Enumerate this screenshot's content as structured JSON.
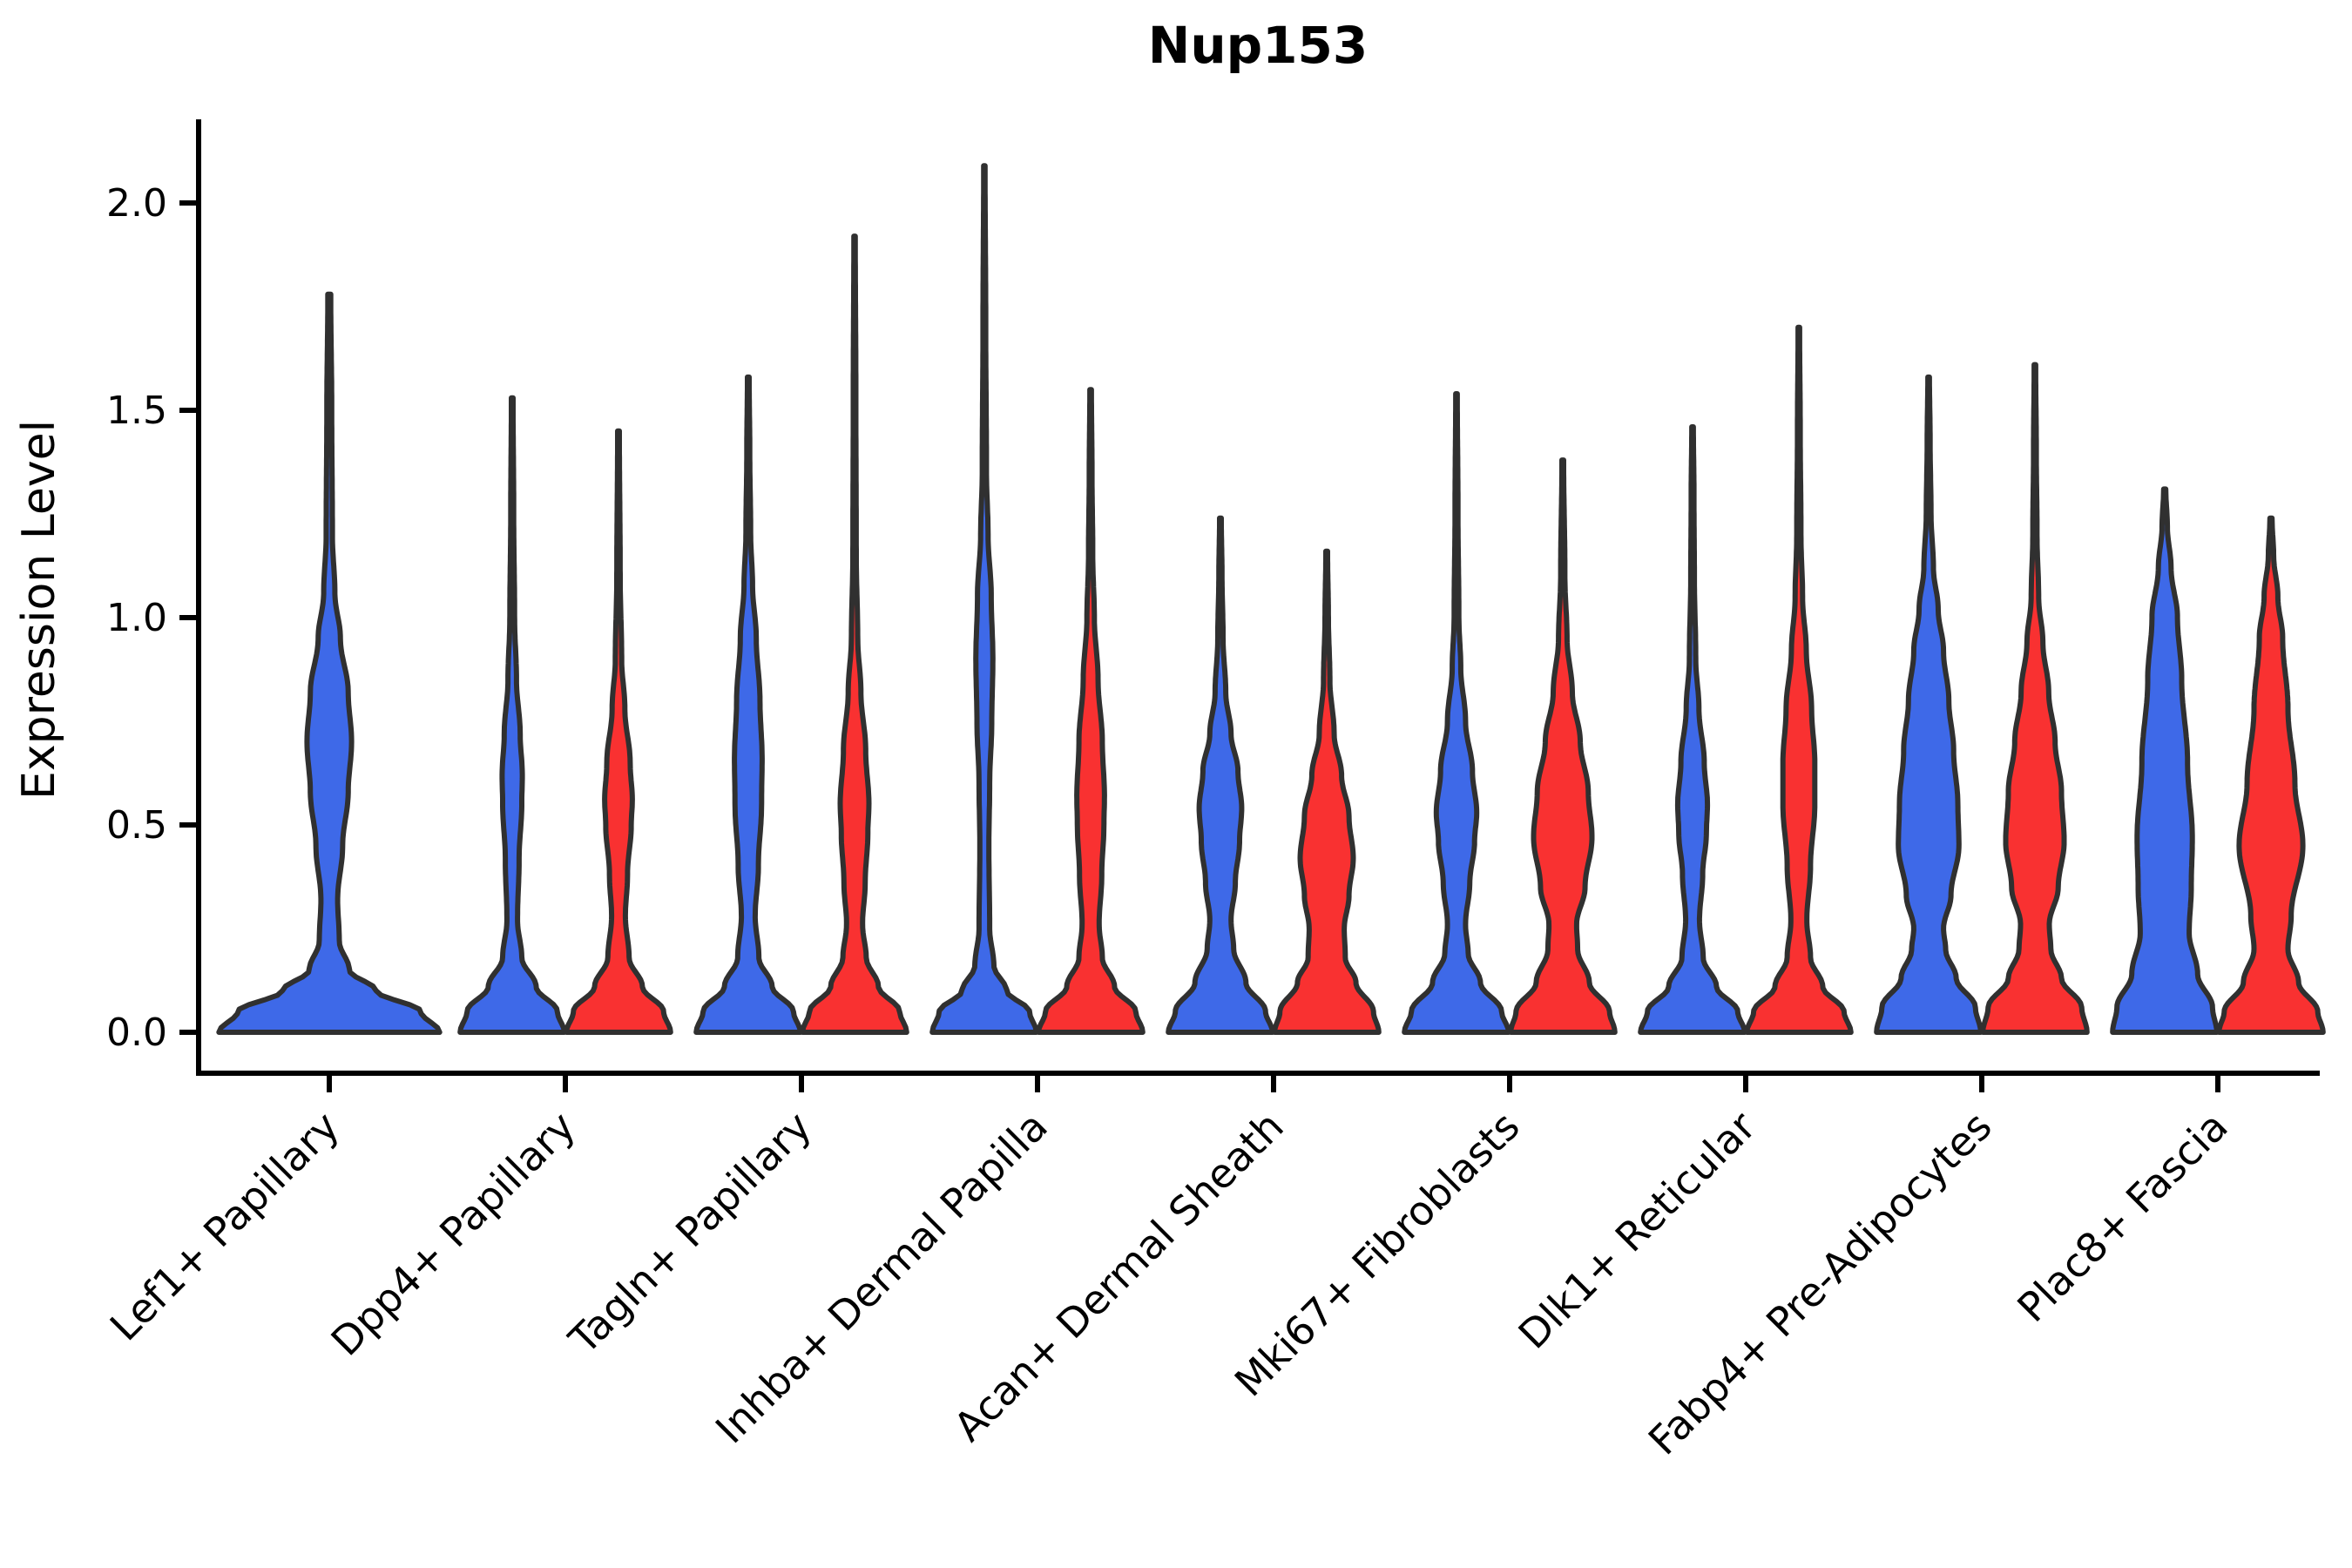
{
  "chart_data": {
    "type": "violin",
    "title": "Nup153",
    "ylabel": "Expression Level",
    "xlabel": "",
    "ylim": [
      -0.1,
      2.2
    ],
    "grid": false,
    "legend": "none",
    "y_ticks": [
      0.0,
      0.5,
      1.0,
      1.5,
      2.0
    ],
    "y_tick_labels": [
      "0.0",
      "0.5",
      "1.0",
      "1.5",
      "2.0"
    ],
    "categories": [
      "Lef1+ Papillary",
      "Dpp4+ Papillary",
      "Tagln+ Papillary",
      "Inhba+ Dermal Papilla",
      "Acan+ Dermal Sheath",
      "Mki67+ Fibroblasts",
      "Dlk1+ Reticular",
      "Fabp4+ Pre-Adipocytes",
      "Plac8+ Fascia"
    ],
    "colors": {
      "blue": "#3E69E8",
      "red": "#F93131",
      "outline": "#303030",
      "axis": "#000000"
    },
    "violins": [
      {
        "category_index": 0,
        "category": "Lef1+ Papillary",
        "color": "blue",
        "position": "center",
        "max_expression": 1.78,
        "profile": [
          [
            0,
            0.99
          ],
          [
            0.05,
            0.82
          ],
          [
            0.1,
            0.42
          ],
          [
            0.15,
            0.18
          ],
          [
            0.22,
            0.09
          ],
          [
            0.32,
            0.075
          ],
          [
            0.45,
            0.12
          ],
          [
            0.58,
            0.17
          ],
          [
            0.7,
            0.2
          ],
          [
            0.82,
            0.17
          ],
          [
            0.95,
            0.1
          ],
          [
            1.06,
            0.05
          ],
          [
            1.2,
            0.028
          ],
          [
            1.5,
            0.022
          ],
          [
            1.78,
            0.013
          ]
        ]
      },
      {
        "category_index": 1,
        "category": "Dpp4+ Papillary",
        "color": "blue",
        "position": "left",
        "max_expression": 1.53,
        "profile": [
          [
            0,
            0.98
          ],
          [
            0.05,
            0.85
          ],
          [
            0.11,
            0.45
          ],
          [
            0.18,
            0.18
          ],
          [
            0.27,
            0.1
          ],
          [
            0.42,
            0.13
          ],
          [
            0.55,
            0.18
          ],
          [
            0.62,
            0.19
          ],
          [
            0.72,
            0.15
          ],
          [
            0.85,
            0.08
          ],
          [
            1.0,
            0.045
          ],
          [
            1.25,
            0.028
          ],
          [
            1.53,
            0.016
          ]
        ]
      },
      {
        "category_index": 1,
        "category": "Dpp4+ Papillary",
        "color": "red",
        "position": "right",
        "max_expression": 1.45,
        "profile": [
          [
            0,
            0.98
          ],
          [
            0.05,
            0.85
          ],
          [
            0.11,
            0.45
          ],
          [
            0.18,
            0.2
          ],
          [
            0.28,
            0.13
          ],
          [
            0.38,
            0.17
          ],
          [
            0.5,
            0.24
          ],
          [
            0.56,
            0.26
          ],
          [
            0.65,
            0.22
          ],
          [
            0.78,
            0.12
          ],
          [
            0.9,
            0.06
          ],
          [
            1.1,
            0.032
          ],
          [
            1.45,
            0.016
          ]
        ]
      },
      {
        "category_index": 2,
        "category": "Tagln+ Papillary",
        "color": "blue",
        "position": "left",
        "max_expression": 1.58,
        "profile": [
          [
            0,
            0.98
          ],
          [
            0.05,
            0.85
          ],
          [
            0.11,
            0.45
          ],
          [
            0.18,
            0.2
          ],
          [
            0.28,
            0.13
          ],
          [
            0.4,
            0.19
          ],
          [
            0.55,
            0.25
          ],
          [
            0.66,
            0.26
          ],
          [
            0.8,
            0.22
          ],
          [
            0.95,
            0.15
          ],
          [
            1.08,
            0.08
          ],
          [
            1.2,
            0.045
          ],
          [
            1.4,
            0.028
          ],
          [
            1.58,
            0.016
          ]
        ]
      },
      {
        "category_index": 2,
        "category": "Tagln+ Papillary",
        "color": "red",
        "position": "right",
        "max_expression": 1.92,
        "profile": [
          [
            0,
            0.98
          ],
          [
            0.05,
            0.85
          ],
          [
            0.11,
            0.45
          ],
          [
            0.18,
            0.22
          ],
          [
            0.26,
            0.15
          ],
          [
            0.36,
            0.2
          ],
          [
            0.48,
            0.25
          ],
          [
            0.55,
            0.27
          ],
          [
            0.68,
            0.21
          ],
          [
            0.82,
            0.12
          ],
          [
            0.95,
            0.06
          ],
          [
            1.15,
            0.032
          ],
          [
            1.55,
            0.024
          ],
          [
            1.92,
            0.013
          ]
        ]
      },
      {
        "category_index": 3,
        "category": "Inhba+ Dermal Papilla",
        "color": "blue",
        "position": "left",
        "max_expression": 2.09,
        "profile": [
          [
            0,
            0.98
          ],
          [
            0.05,
            0.85
          ],
          [
            0.1,
            0.42
          ],
          [
            0.16,
            0.18
          ],
          [
            0.25,
            0.1
          ],
          [
            0.45,
            0.085
          ],
          [
            0.6,
            0.1
          ],
          [
            0.75,
            0.14
          ],
          [
            0.9,
            0.16
          ],
          [
            1.05,
            0.13
          ],
          [
            1.2,
            0.07
          ],
          [
            1.35,
            0.04
          ],
          [
            1.7,
            0.026
          ],
          [
            2.09,
            0.013
          ]
        ]
      },
      {
        "category_index": 3,
        "category": "Inhba+ Dermal Papilla",
        "color": "red",
        "position": "right",
        "max_expression": 1.55,
        "profile": [
          [
            0,
            0.98
          ],
          [
            0.05,
            0.85
          ],
          [
            0.11,
            0.45
          ],
          [
            0.18,
            0.22
          ],
          [
            0.26,
            0.16
          ],
          [
            0.38,
            0.21
          ],
          [
            0.5,
            0.25
          ],
          [
            0.57,
            0.26
          ],
          [
            0.7,
            0.22
          ],
          [
            0.85,
            0.14
          ],
          [
            1.0,
            0.07
          ],
          [
            1.15,
            0.04
          ],
          [
            1.35,
            0.026
          ],
          [
            1.55,
            0.015
          ]
        ]
      },
      {
        "category_index": 4,
        "category": "Acan+ Dermal Sheath",
        "color": "blue",
        "position": "left",
        "max_expression": 1.24,
        "profile": [
          [
            0,
            0.98
          ],
          [
            0.05,
            0.85
          ],
          [
            0.12,
            0.48
          ],
          [
            0.2,
            0.25
          ],
          [
            0.27,
            0.2
          ],
          [
            0.36,
            0.28
          ],
          [
            0.46,
            0.36
          ],
          [
            0.54,
            0.4
          ],
          [
            0.63,
            0.33
          ],
          [
            0.72,
            0.2
          ],
          [
            0.82,
            0.1
          ],
          [
            0.95,
            0.05
          ],
          [
            1.1,
            0.03
          ],
          [
            1.24,
            0.016
          ]
        ]
      },
      {
        "category_index": 4,
        "category": "Acan+ Dermal Sheath",
        "color": "red",
        "position": "right",
        "max_expression": 1.16,
        "profile": [
          [
            0,
            0.98
          ],
          [
            0.05,
            0.88
          ],
          [
            0.12,
            0.55
          ],
          [
            0.18,
            0.35
          ],
          [
            0.25,
            0.33
          ],
          [
            0.33,
            0.42
          ],
          [
            0.42,
            0.5
          ],
          [
            0.52,
            0.42
          ],
          [
            0.62,
            0.28
          ],
          [
            0.72,
            0.14
          ],
          [
            0.85,
            0.06
          ],
          [
            1.0,
            0.032
          ],
          [
            1.16,
            0.016
          ]
        ]
      },
      {
        "category_index": 5,
        "category": "Mki67+ Fibroblasts",
        "color": "blue",
        "position": "left",
        "max_expression": 1.54,
        "profile": [
          [
            0,
            0.98
          ],
          [
            0.05,
            0.85
          ],
          [
            0.12,
            0.45
          ],
          [
            0.19,
            0.22
          ],
          [
            0.26,
            0.17
          ],
          [
            0.36,
            0.25
          ],
          [
            0.46,
            0.34
          ],
          [
            0.53,
            0.38
          ],
          [
            0.63,
            0.3
          ],
          [
            0.75,
            0.17
          ],
          [
            0.88,
            0.08
          ],
          [
            1.0,
            0.045
          ],
          [
            1.25,
            0.028
          ],
          [
            1.54,
            0.015
          ]
        ]
      },
      {
        "category_index": 5,
        "category": "Mki67+ Fibroblasts",
        "color": "red",
        "position": "right",
        "max_expression": 1.38,
        "profile": [
          [
            0,
            0.98
          ],
          [
            0.05,
            0.88
          ],
          [
            0.12,
            0.5
          ],
          [
            0.2,
            0.28
          ],
          [
            0.26,
            0.26
          ],
          [
            0.35,
            0.42
          ],
          [
            0.47,
            0.55
          ],
          [
            0.58,
            0.48
          ],
          [
            0.7,
            0.33
          ],
          [
            0.82,
            0.18
          ],
          [
            0.95,
            0.08
          ],
          [
            1.1,
            0.04
          ],
          [
            1.38,
            0.016
          ]
        ]
      },
      {
        "category_index": 6,
        "category": "Dlk1+ Reticular",
        "color": "blue",
        "position": "left",
        "max_expression": 1.46,
        "profile": [
          [
            0,
            0.98
          ],
          [
            0.05,
            0.85
          ],
          [
            0.11,
            0.45
          ],
          [
            0.18,
            0.2
          ],
          [
            0.27,
            0.13
          ],
          [
            0.38,
            0.19
          ],
          [
            0.48,
            0.26
          ],
          [
            0.55,
            0.28
          ],
          [
            0.65,
            0.22
          ],
          [
            0.78,
            0.12
          ],
          [
            0.9,
            0.06
          ],
          [
            1.1,
            0.034
          ],
          [
            1.3,
            0.026
          ],
          [
            1.46,
            0.015
          ]
        ]
      },
      {
        "category_index": 6,
        "category": "Dlk1+ Reticular",
        "color": "red",
        "position": "right",
        "max_expression": 1.7,
        "profile": [
          [
            0,
            0.98
          ],
          [
            0.05,
            0.85
          ],
          [
            0.11,
            0.45
          ],
          [
            0.18,
            0.22
          ],
          [
            0.27,
            0.15
          ],
          [
            0.4,
            0.22
          ],
          [
            0.55,
            0.3
          ],
          [
            0.65,
            0.3
          ],
          [
            0.78,
            0.24
          ],
          [
            0.92,
            0.14
          ],
          [
            1.05,
            0.07
          ],
          [
            1.2,
            0.04
          ],
          [
            1.45,
            0.026
          ],
          [
            1.7,
            0.014
          ]
        ]
      },
      {
        "category_index": 7,
        "category": "Fabp4+ Pre-Adipocytes",
        "color": "blue",
        "position": "left",
        "max_expression": 1.58,
        "profile": [
          [
            0,
            0.98
          ],
          [
            0.06,
            0.88
          ],
          [
            0.13,
            0.52
          ],
          [
            0.2,
            0.32
          ],
          [
            0.25,
            0.28
          ],
          [
            0.33,
            0.42
          ],
          [
            0.45,
            0.57
          ],
          [
            0.55,
            0.55
          ],
          [
            0.68,
            0.47
          ],
          [
            0.8,
            0.38
          ],
          [
            0.92,
            0.28
          ],
          [
            1.02,
            0.18
          ],
          [
            1.12,
            0.09
          ],
          [
            1.25,
            0.045
          ],
          [
            1.42,
            0.028
          ],
          [
            1.58,
            0.015
          ]
        ]
      },
      {
        "category_index": 7,
        "category": "Fabp4+ Pre-Adipocytes",
        "color": "red",
        "position": "right",
        "max_expression": 1.61,
        "profile": [
          [
            0,
            0.98
          ],
          [
            0.06,
            0.88
          ],
          [
            0.13,
            0.5
          ],
          [
            0.2,
            0.3
          ],
          [
            0.26,
            0.27
          ],
          [
            0.35,
            0.44
          ],
          [
            0.46,
            0.55
          ],
          [
            0.58,
            0.5
          ],
          [
            0.7,
            0.38
          ],
          [
            0.82,
            0.26
          ],
          [
            0.94,
            0.15
          ],
          [
            1.05,
            0.07
          ],
          [
            1.2,
            0.04
          ],
          [
            1.4,
            0.026
          ],
          [
            1.61,
            0.014
          ]
        ]
      },
      {
        "category_index": 8,
        "category": "Plac8+ Fascia",
        "color": "blue",
        "position": "left",
        "max_expression": 1.31,
        "profile": [
          [
            0,
            0.98
          ],
          [
            0.06,
            0.9
          ],
          [
            0.14,
            0.62
          ],
          [
            0.24,
            0.46
          ],
          [
            0.35,
            0.5
          ],
          [
            0.47,
            0.52
          ],
          [
            0.65,
            0.43
          ],
          [
            0.85,
            0.32
          ],
          [
            1.0,
            0.24
          ],
          [
            1.12,
            0.12
          ],
          [
            1.22,
            0.05
          ],
          [
            1.31,
            0.02
          ]
        ]
      },
      {
        "category_index": 8,
        "category": "Plac8+ Fascia",
        "color": "red",
        "position": "right",
        "max_expression": 1.24,
        "profile": [
          [
            0,
            0.98
          ],
          [
            0.05,
            0.88
          ],
          [
            0.12,
            0.52
          ],
          [
            0.2,
            0.32
          ],
          [
            0.28,
            0.38
          ],
          [
            0.45,
            0.6
          ],
          [
            0.6,
            0.45
          ],
          [
            0.78,
            0.32
          ],
          [
            0.95,
            0.22
          ],
          [
            1.05,
            0.13
          ],
          [
            1.15,
            0.05
          ],
          [
            1.24,
            0.02
          ]
        ]
      }
    ]
  }
}
